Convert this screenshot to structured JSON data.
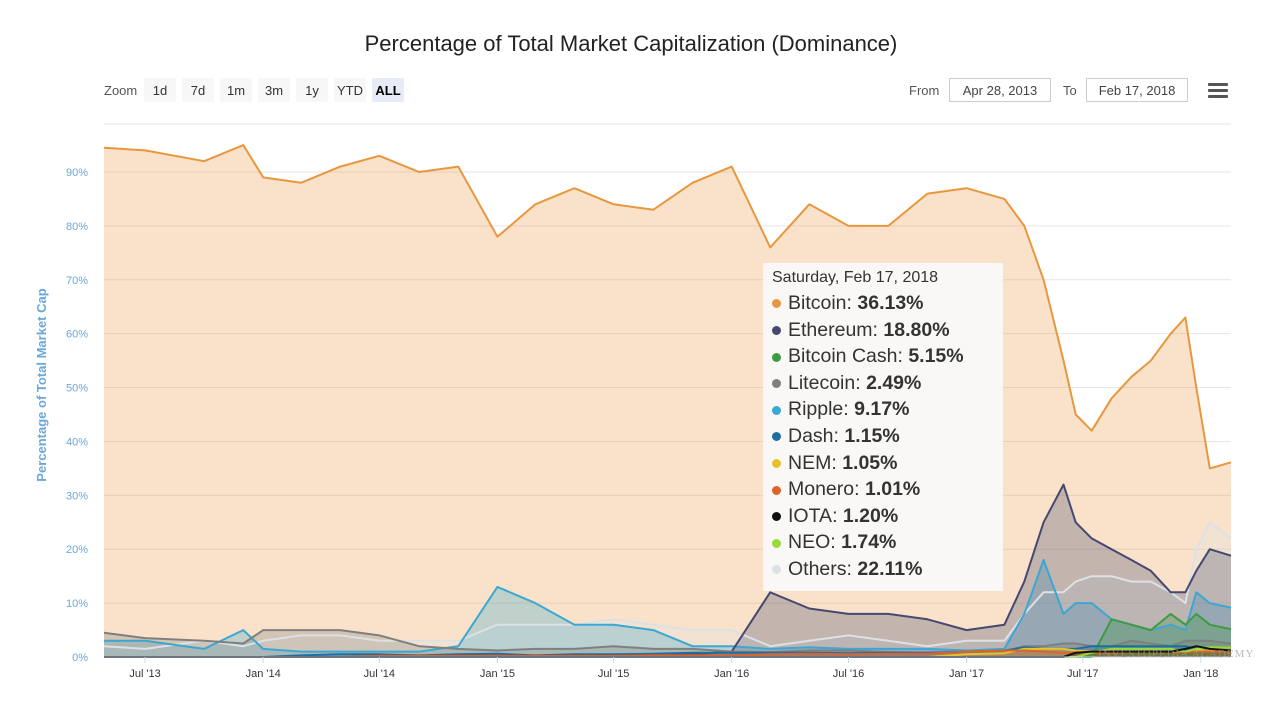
{
  "title": "Percentage of Total Market Capitalization (Dominance)",
  "toolbar": {
    "zoom_label": "Zoom",
    "zoom_buttons": [
      "1d",
      "7d",
      "1m",
      "3m",
      "1y",
      "YTD",
      "ALL"
    ],
    "active_zoom": "ALL",
    "from_label": "From",
    "from_value": "Apr 28, 2013",
    "to_label": "To",
    "to_value": "Feb 17, 2018",
    "menu_icon": "hamburger-menu-icon"
  },
  "tooltip": {
    "date": "Saturday, Feb 17, 2018",
    "items": [
      {
        "name": "Bitcoin",
        "value": "36.13%",
        "color": "#e8973e"
      },
      {
        "name": "Ethereum",
        "value": "18.80%",
        "color": "#454870"
      },
      {
        "name": "Bitcoin Cash",
        "value": "5.15%",
        "color": "#3f9b3f"
      },
      {
        "name": "Litecoin",
        "value": "2.49%",
        "color": "#7f7f7f"
      },
      {
        "name": "Ripple",
        "value": "9.17%",
        "color": "#3ba7d2"
      },
      {
        "name": "Dash",
        "value": "1.15%",
        "color": "#1c6fa0"
      },
      {
        "name": "NEM",
        "value": "1.05%",
        "color": "#e8c22a"
      },
      {
        "name": "Monero",
        "value": "1.01%",
        "color": "#e0622b"
      },
      {
        "name": "IOTA",
        "value": "1.20%",
        "color": "#111111"
      },
      {
        "name": "NEO",
        "value": "1.74%",
        "color": "#9bd93a"
      },
      {
        "name": "Others",
        "value": "22.11%",
        "color": "#dde1e6"
      }
    ]
  },
  "watermark": "INVESTOPEDIA ACADEMY",
  "chart_data": {
    "type": "area",
    "ylabel": "Percentage of Total Market Cap",
    "ylim": [
      0,
      100
    ],
    "y_ticks": [
      "0%",
      "10%",
      "20%",
      "30%",
      "40%",
      "50%",
      "60%",
      "70%",
      "80%",
      "90%"
    ],
    "x_ticks": [
      "Jul '13",
      "Jan '14",
      "Jul '14",
      "Jan '15",
      "Jul '15",
      "Jan '16",
      "Jul '16",
      "Jan '17",
      "Jul '17",
      "Jan '18"
    ],
    "grid": true,
    "x": [
      "2013-04-28",
      "2013-07-01",
      "2013-10-01",
      "2013-12-01",
      "2014-01-01",
      "2014-03-01",
      "2014-05-01",
      "2014-07-01",
      "2014-09-01",
      "2014-11-01",
      "2015-01-01",
      "2015-03-01",
      "2015-05-01",
      "2015-07-01",
      "2015-09-01",
      "2015-11-01",
      "2016-01-01",
      "2016-03-01",
      "2016-05-01",
      "2016-07-01",
      "2016-09-01",
      "2016-11-01",
      "2017-01-01",
      "2017-03-01",
      "2017-04-01",
      "2017-05-01",
      "2017-06-01",
      "2017-06-20",
      "2017-07-15",
      "2017-08-15",
      "2017-09-15",
      "2017-10-15",
      "2017-11-15",
      "2017-12-08",
      "2017-12-25",
      "2018-01-15",
      "2018-02-17"
    ],
    "series": [
      {
        "name": "Bitcoin",
        "color": "#e8973e",
        "values": [
          94.5,
          94,
          92,
          95,
          89,
          88,
          91,
          93,
          90,
          91,
          78,
          84,
          87,
          84,
          83,
          88,
          91,
          76,
          84,
          80,
          80,
          86,
          87,
          85,
          80,
          70,
          55,
          45,
          42,
          48,
          52,
          55,
          60,
          63,
          50,
          35,
          36.13
        ]
      },
      {
        "name": "Ethereum",
        "color": "#454870",
        "values": [
          0,
          0,
          0,
          0,
          0,
          0,
          0,
          0,
          0,
          0,
          0,
          0,
          0,
          0,
          0.3,
          0.5,
          1,
          12,
          9,
          8,
          8,
          7,
          5,
          6,
          14,
          25,
          32,
          25,
          22,
          20,
          18,
          16,
          12,
          12,
          16,
          20,
          18.8
        ]
      },
      {
        "name": "Bitcoin Cash",
        "color": "#3f9b3f",
        "values": [
          0,
          0,
          0,
          0,
          0,
          0,
          0,
          0,
          0,
          0,
          0,
          0,
          0,
          0,
          0,
          0,
          0,
          0,
          0,
          0,
          0,
          0,
          0,
          0,
          0,
          0,
          0,
          0,
          0,
          7,
          6,
          5,
          8,
          6,
          8,
          6,
          5.15
        ]
      },
      {
        "name": "Litecoin",
        "color": "#7f7f7f",
        "values": [
          4.5,
          3.5,
          3,
          2.5,
          5,
          5,
          5,
          4,
          2,
          1.5,
          1.2,
          1.5,
          1.5,
          2,
          1.5,
          1.5,
          1,
          0.9,
          1.2,
          1.2,
          0.9,
          0.8,
          0.9,
          1,
          2,
          2,
          2.5,
          2.5,
          2,
          2,
          3,
          2.5,
          2,
          3,
          3,
          3,
          2.49
        ]
      },
      {
        "name": "Ripple",
        "color": "#3ba7d2",
        "values": [
          3,
          3,
          1.5,
          5,
          1.5,
          1,
          1,
          1,
          1,
          2,
          13,
          10,
          6,
          6,
          5,
          2,
          2,
          1.5,
          1.8,
          1.5,
          1.5,
          1.5,
          1.2,
          1.5,
          8,
          18,
          8,
          10,
          10,
          7,
          6,
          5,
          6,
          5,
          12,
          10,
          9.17
        ]
      },
      {
        "name": "Dash",
        "color": "#1c6fa0",
        "values": [
          0,
          0,
          0,
          0,
          0,
          0.3,
          0.5,
          0.5,
          0.3,
          0.5,
          0.6,
          0.3,
          0.5,
          0.5,
          0.6,
          0.8,
          0.8,
          0.8,
          0.8,
          0.7,
          0.8,
          0.8,
          1,
          1.2,
          1.8,
          1.5,
          1.5,
          1.5,
          2,
          2,
          2,
          2,
          2,
          2,
          1.5,
          1.2,
          1.15
        ]
      },
      {
        "name": "NEM",
        "color": "#e8c22a",
        "values": [
          0,
          0,
          0,
          0,
          0,
          0,
          0,
          0,
          0,
          0,
          0,
          0,
          0,
          0,
          0,
          0,
          0,
          0,
          0,
          0,
          0,
          0,
          0.5,
          0.7,
          1.5,
          1.5,
          1.5,
          1.2,
          1,
          1,
          1,
          1,
          1,
          1,
          1.3,
          1.2,
          1.05
        ]
      },
      {
        "name": "Monero",
        "color": "#e0622b",
        "values": [
          0,
          0,
          0,
          0,
          0,
          0,
          0,
          0.2,
          0.2,
          0.2,
          0.2,
          0.2,
          0.2,
          0.2,
          0.3,
          0.3,
          0.3,
          0.5,
          0.6,
          0.5,
          0.6,
          0.6,
          1,
          1.2,
          1.2,
          1,
          0.8,
          0.8,
          0.8,
          0.8,
          1,
          1,
          1,
          1,
          1,
          1,
          1.01
        ]
      },
      {
        "name": "IOTA",
        "color": "#111111",
        "values": [
          0,
          0,
          0,
          0,
          0,
          0,
          0,
          0,
          0,
          0,
          0,
          0,
          0,
          0,
          0,
          0,
          0,
          0,
          0,
          0,
          0,
          0,
          0,
          0,
          0,
          0,
          0,
          0.8,
          1,
          1,
          1,
          1,
          1,
          1.5,
          2,
          1.5,
          1.2
        ]
      },
      {
        "name": "NEO",
        "color": "#9bd93a",
        "values": [
          0,
          0,
          0,
          0,
          0,
          0,
          0,
          0,
          0,
          0,
          0,
          0,
          0,
          0,
          0,
          0,
          0,
          0,
          0,
          0,
          0,
          0,
          0,
          0,
          0,
          0,
          0,
          0,
          0.8,
          1.5,
          1.5,
          1.5,
          1.5,
          1,
          1.5,
          1.8,
          1.74
        ]
      },
      {
        "name": "Others",
        "color": "#dde1e6",
        "values": [
          2,
          1.5,
          3,
          2,
          3,
          4,
          4,
          3,
          3,
          3,
          6,
          6,
          6,
          7,
          6,
          5,
          5,
          2,
          3,
          4,
          3,
          2,
          3,
          3,
          8,
          12,
          12,
          14,
          15,
          15,
          14,
          14,
          12,
          10,
          20,
          25,
          22.11
        ]
      }
    ]
  }
}
